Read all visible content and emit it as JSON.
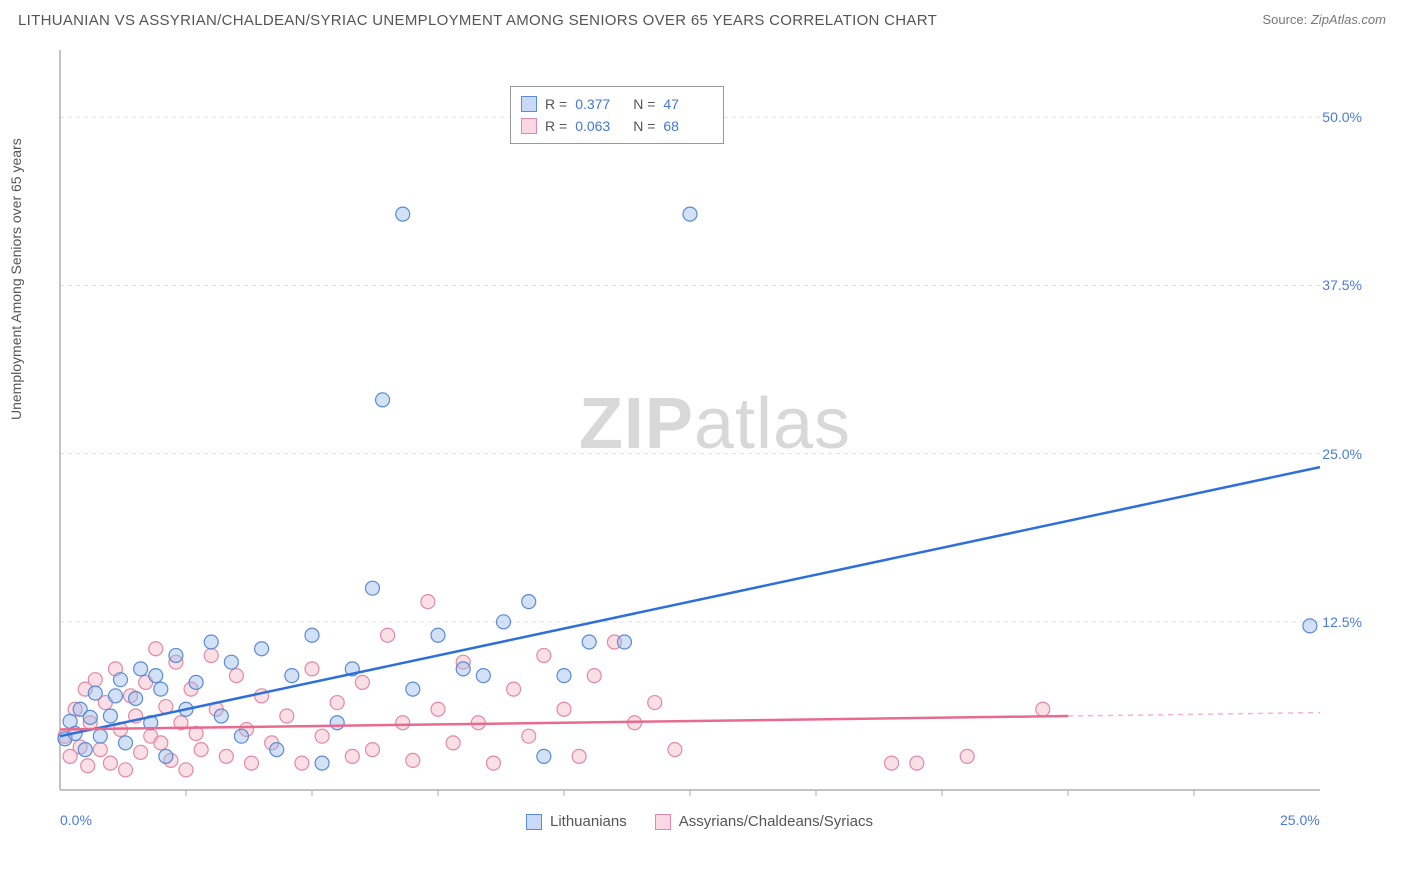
{
  "title": "LITHUANIAN VS ASSYRIAN/CHALDEAN/SYRIAC UNEMPLOYMENT AMONG SENIORS OVER 65 YEARS CORRELATION CHART",
  "source_label": "Source: ",
  "source_value": "ZipAtlas.com",
  "y_axis_label": "Unemployment Among Seniors over 65 years",
  "watermark": {
    "bold": "ZIP",
    "light": "atlas"
  },
  "legend_top": [
    {
      "swatch": "blue",
      "r_label": "R  =",
      "r": "0.377",
      "n_label": "N  =",
      "n": "47"
    },
    {
      "swatch": "pink",
      "r_label": "R  =",
      "r": "0.063",
      "n_label": "N  =",
      "n": "68"
    }
  ],
  "legend_bottom": [
    {
      "swatch": "blue",
      "label": "Lithuanians"
    },
    {
      "swatch": "pink",
      "label": "Assyrians/Chaldeans/Syriacs"
    }
  ],
  "chart": {
    "type": "scatter",
    "xlim": [
      0,
      25
    ],
    "ylim": [
      0,
      55
    ],
    "x_ticks": [
      {
        "value": 0,
        "label": "0.0%"
      },
      {
        "value": 25,
        "label": "25.0%"
      }
    ],
    "y_ticks": [
      {
        "value": 12.5,
        "label": "12.5%"
      },
      {
        "value": 25.0,
        "label": "25.0%"
      },
      {
        "value": 37.5,
        "label": "37.5%"
      },
      {
        "value": 50.0,
        "label": "50.0%"
      }
    ],
    "x_minor_ticks": [
      2.5,
      5,
      7.5,
      10,
      12.5,
      15,
      17.5,
      20,
      22.5
    ],
    "grid_color": "#e0e0e0",
    "axis_color": "#b0b0b0",
    "background_color": "#ffffff",
    "marker_radius": 7,
    "marker_opacity": 0.45,
    "series": {
      "blue": {
        "fill": "#9bbce8",
        "stroke": "#5b8bd4",
        "line_color": "#2e6fd9",
        "line_width": 2.5,
        "regression": {
          "x1": 0,
          "y1": 4.0,
          "x2": 25,
          "y2": 24.0
        },
        "points": [
          [
            0.1,
            3.8
          ],
          [
            0.2,
            5.1
          ],
          [
            0.3,
            4.2
          ],
          [
            0.4,
            6.0
          ],
          [
            0.5,
            3.0
          ],
          [
            0.6,
            5.4
          ],
          [
            0.7,
            7.2
          ],
          [
            0.8,
            4.0
          ],
          [
            1.0,
            5.5
          ],
          [
            1.1,
            7.0
          ],
          [
            1.2,
            8.2
          ],
          [
            1.3,
            3.5
          ],
          [
            1.5,
            6.8
          ],
          [
            1.6,
            9.0
          ],
          [
            1.8,
            5.0
          ],
          [
            1.9,
            8.5
          ],
          [
            2.0,
            7.5
          ],
          [
            2.1,
            2.5
          ],
          [
            2.3,
            10.0
          ],
          [
            2.5,
            6.0
          ],
          [
            2.7,
            8.0
          ],
          [
            3.0,
            11.0
          ],
          [
            3.2,
            5.5
          ],
          [
            3.4,
            9.5
          ],
          [
            3.6,
            4.0
          ],
          [
            4.0,
            10.5
          ],
          [
            4.3,
            3.0
          ],
          [
            4.6,
            8.5
          ],
          [
            5.0,
            11.5
          ],
          [
            5.2,
            2.0
          ],
          [
            5.5,
            5.0
          ],
          [
            5.8,
            9.0
          ],
          [
            6.2,
            15.0
          ],
          [
            6.4,
            29.0
          ],
          [
            6.8,
            42.8
          ],
          [
            7.0,
            7.5
          ],
          [
            7.5,
            11.5
          ],
          [
            8.0,
            9.0
          ],
          [
            8.4,
            8.5
          ],
          [
            8.8,
            12.5
          ],
          [
            9.3,
            14.0
          ],
          [
            9.6,
            2.5
          ],
          [
            10.0,
            8.5
          ],
          [
            10.5,
            11.0
          ],
          [
            11.2,
            11.0
          ],
          [
            12.5,
            42.8
          ],
          [
            24.8,
            12.2
          ]
        ]
      },
      "pink": {
        "fill": "#f5b8c8",
        "stroke": "#e18aa5",
        "line_color": "#e86b8f",
        "line_width": 2.5,
        "regression": {
          "x1": 0,
          "y1": 4.5,
          "x2": 20,
          "y2": 5.5
        },
        "regression_dashed_from": 20,
        "regression_dashed_to": 25,
        "points": [
          [
            0.1,
            4.0
          ],
          [
            0.2,
            2.5
          ],
          [
            0.3,
            6.0
          ],
          [
            0.4,
            3.2
          ],
          [
            0.5,
            7.5
          ],
          [
            0.55,
            1.8
          ],
          [
            0.6,
            5.0
          ],
          [
            0.7,
            8.2
          ],
          [
            0.8,
            3.0
          ],
          [
            0.9,
            6.5
          ],
          [
            1.0,
            2.0
          ],
          [
            1.1,
            9.0
          ],
          [
            1.2,
            4.5
          ],
          [
            1.3,
            1.5
          ],
          [
            1.4,
            7.0
          ],
          [
            1.5,
            5.5
          ],
          [
            1.6,
            2.8
          ],
          [
            1.7,
            8.0
          ],
          [
            1.8,
            4.0
          ],
          [
            1.9,
            10.5
          ],
          [
            2.0,
            3.5
          ],
          [
            2.1,
            6.2
          ],
          [
            2.2,
            2.2
          ],
          [
            2.3,
            9.5
          ],
          [
            2.4,
            5.0
          ],
          [
            2.5,
            1.5
          ],
          [
            2.6,
            7.5
          ],
          [
            2.7,
            4.2
          ],
          [
            2.8,
            3.0
          ],
          [
            3.0,
            10.0
          ],
          [
            3.1,
            6.0
          ],
          [
            3.3,
            2.5
          ],
          [
            3.5,
            8.5
          ],
          [
            3.7,
            4.5
          ],
          [
            3.8,
            2.0
          ],
          [
            4.0,
            7.0
          ],
          [
            4.2,
            3.5
          ],
          [
            4.5,
            5.5
          ],
          [
            4.8,
            2.0
          ],
          [
            5.0,
            9.0
          ],
          [
            5.2,
            4.0
          ],
          [
            5.5,
            6.5
          ],
          [
            5.8,
            2.5
          ],
          [
            6.0,
            8.0
          ],
          [
            6.2,
            3.0
          ],
          [
            6.5,
            11.5
          ],
          [
            6.8,
            5.0
          ],
          [
            7.0,
            2.2
          ],
          [
            7.3,
            14.0
          ],
          [
            7.5,
            6.0
          ],
          [
            7.8,
            3.5
          ],
          [
            8.0,
            9.5
          ],
          [
            8.3,
            5.0
          ],
          [
            8.6,
            2.0
          ],
          [
            9.0,
            7.5
          ],
          [
            9.3,
            4.0
          ],
          [
            9.6,
            10.0
          ],
          [
            10.0,
            6.0
          ],
          [
            10.3,
            2.5
          ],
          [
            10.6,
            8.5
          ],
          [
            11.0,
            11.0
          ],
          [
            11.4,
            5.0
          ],
          [
            11.8,
            6.5
          ],
          [
            12.2,
            3.0
          ],
          [
            16.5,
            2.0
          ],
          [
            18.0,
            2.5
          ],
          [
            19.5,
            6.0
          ],
          [
            17.0,
            2.0
          ]
        ]
      }
    }
  }
}
